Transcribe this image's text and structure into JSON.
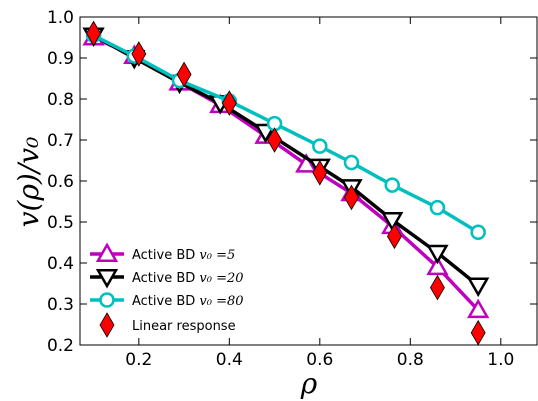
{
  "chart_data": {
    "type": "line",
    "title": "",
    "xlabel": "ρ",
    "ylabel": "v(ρ)/v₀",
    "xlim": [
      0.07,
      1.08
    ],
    "ylim": [
      0.2,
      1.0
    ],
    "xticks": [
      "0.2",
      "0.4",
      "0.6",
      "0.8",
      "1.0"
    ],
    "xtick_values": [
      0.2,
      0.4,
      0.6,
      0.8,
      1.0
    ],
    "yticks": [
      "0.2",
      "0.3",
      "0.4",
      "0.5",
      "0.6",
      "0.7",
      "0.8",
      "0.9",
      "1.0"
    ],
    "ytick_values": [
      0.2,
      0.3,
      0.4,
      0.5,
      0.6,
      0.7,
      0.8,
      0.9,
      1.0
    ],
    "grid": false,
    "legend_position": "bottom-left",
    "series": [
      {
        "name": "Active BD v₀ =5",
        "legend_prefix": "Active BD ",
        "legend_math": "v₀ =5",
        "color": "#bf00bf",
        "marker": "triangle-up",
        "x": [
          0.1,
          0.19,
          0.29,
          0.38,
          0.48,
          0.57,
          0.67,
          0.76,
          0.86,
          0.95
        ],
        "y": [
          0.95,
          0.905,
          0.84,
          0.785,
          0.71,
          0.64,
          0.57,
          0.49,
          0.39,
          0.285
        ]
      },
      {
        "name": "Active BD v₀ =20",
        "legend_prefix": "Active BD ",
        "legend_math": "v₀ =20",
        "color": "#000000",
        "marker": "triangle-down",
        "x": [
          0.1,
          0.19,
          0.29,
          0.38,
          0.48,
          0.6,
          0.67,
          0.76,
          0.86,
          0.95
        ],
        "y": [
          0.955,
          0.9,
          0.84,
          0.79,
          0.72,
          0.635,
          0.585,
          0.505,
          0.425,
          0.345
        ]
      },
      {
        "name": "Active BD v₀ =80",
        "legend_prefix": "Active BD ",
        "legend_math": "v₀ =80",
        "color": "#00bfbf",
        "marker": "circle",
        "x": [
          0.1,
          0.19,
          0.29,
          0.4,
          0.5,
          0.6,
          0.67,
          0.76,
          0.86,
          0.95
        ],
        "y": [
          0.955,
          0.905,
          0.845,
          0.795,
          0.74,
          0.685,
          0.645,
          0.59,
          0.535,
          0.475
        ]
      },
      {
        "name": "Linear response",
        "legend_prefix": "Linear response",
        "legend_math": "",
        "color": "#ff0000",
        "marker": "diamond",
        "x": [
          0.1,
          0.2,
          0.3,
          0.4,
          0.5,
          0.6,
          0.67,
          0.765,
          0.86,
          0.95
        ],
        "y": [
          0.96,
          0.91,
          0.86,
          0.79,
          0.7,
          0.62,
          0.56,
          0.465,
          0.34,
          0.23
        ]
      }
    ]
  }
}
